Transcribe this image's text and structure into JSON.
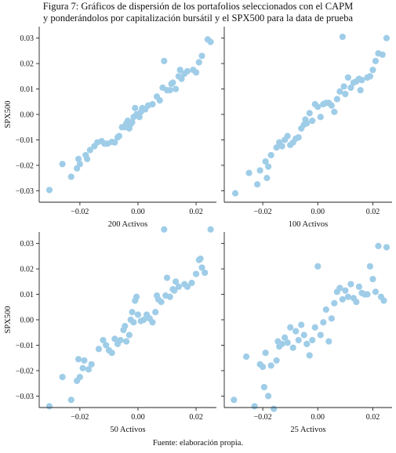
{
  "caption": {
    "line1_a": "Figura 7: Gráficos de dispersión de los portafolios seleccionados con el ",
    "line1_b": "CAPM",
    "line2_a": "y ponderándolos por capitalización bursátil y el ",
    "line2_b": "SPX500",
    "line2_c": " para la data de prueba"
  },
  "source": "Fuente: elaboración propia.",
  "colors": {
    "point": "#9fcde8",
    "axis": "#222222",
    "background": "#ffffff"
  },
  "chart_data": [
    {
      "type": "scatter",
      "xlabel": "200 Activos",
      "ylabel": "SPX500",
      "xticks": [
        -0.02,
        0.0,
        0.02
      ],
      "yticks": [
        -0.03,
        -0.02,
        -0.01,
        0.0,
        0.01,
        0.02,
        0.03
      ],
      "tick_labels_x": [
        "−0.02",
        "0.00",
        "0.02"
      ],
      "tick_labels_y": [
        "−0.03",
        "−0.02",
        "−0.01",
        "0.00",
        "0.01",
        "0.02",
        "0.03"
      ],
      "xlim": [
        -0.034,
        0.027
      ],
      "ylim": [
        -0.0345,
        0.0345
      ],
      "points": [
        [
          -0.0305,
          -0.0297
        ],
        [
          -0.026,
          -0.0195
        ],
        [
          -0.023,
          -0.0245
        ],
        [
          -0.021,
          -0.0212
        ],
        [
          -0.0205,
          -0.0175
        ],
        [
          -0.02,
          -0.0195
        ],
        [
          -0.018,
          -0.016
        ],
        [
          -0.0175,
          -0.0175
        ],
        [
          -0.0165,
          -0.014
        ],
        [
          -0.015,
          -0.0125
        ],
        [
          -0.014,
          -0.011
        ],
        [
          -0.0125,
          -0.0105
        ],
        [
          -0.0115,
          -0.0115
        ],
        [
          -0.0105,
          -0.0115
        ],
        [
          -0.009,
          -0.0108
        ],
        [
          -0.008,
          -0.011
        ],
        [
          -0.007,
          -0.009
        ],
        [
          -0.0065,
          -0.0085
        ],
        [
          -0.0055,
          -0.005
        ],
        [
          -0.0045,
          -0.005
        ],
        [
          -0.004,
          -0.0035
        ],
        [
          -0.0035,
          -0.0025
        ],
        [
          -0.003,
          -0.0055
        ],
        [
          -0.0025,
          -0.0038
        ],
        [
          -0.002,
          -0.003
        ],
        [
          -0.0015,
          -0.001
        ],
        [
          -0.001,
          0.0025
        ],
        [
          -0.0005,
          0.0
        ],
        [
          0.0005,
          -0.001
        ],
        [
          0.001,
          0.001
        ],
        [
          0.0015,
          0.0025
        ],
        [
          0.0025,
          0.002
        ],
        [
          0.0035,
          0.0035
        ],
        [
          0.005,
          0.004
        ],
        [
          0.0065,
          0.007
        ],
        [
          0.0075,
          0.0055
        ],
        [
          0.0085,
          0.0105
        ],
        [
          0.009,
          0.021
        ],
        [
          0.01,
          0.0095
        ],
        [
          0.011,
          0.0095
        ],
        [
          0.0115,
          0.012
        ],
        [
          0.012,
          0.0125
        ],
        [
          0.013,
          0.01
        ],
        [
          0.014,
          0.015
        ],
        [
          0.0145,
          0.0175
        ],
        [
          0.015,
          0.014
        ],
        [
          0.016,
          0.016
        ],
        [
          0.017,
          0.017
        ],
        [
          0.019,
          0.0175
        ],
        [
          0.02,
          0.0165
        ],
        [
          0.021,
          0.0205
        ],
        [
          0.022,
          0.023
        ],
        [
          0.024,
          0.0295
        ],
        [
          0.025,
          0.0285
        ]
      ]
    },
    {
      "type": "scatter",
      "xlabel": "100 Activos",
      "ylabel": "",
      "xticks": [
        -0.02,
        0.0,
        0.02
      ],
      "yticks": [
        -0.03,
        -0.02,
        -0.01,
        0.0,
        0.01,
        0.02,
        0.03
      ],
      "tick_labels_x": [
        "−0.02",
        "0.00",
        "0.02"
      ],
      "tick_labels_y": [],
      "xlim": [
        -0.034,
        0.027
      ],
      "ylim": [
        -0.0345,
        0.0345
      ],
      "points": [
        [
          -0.03,
          -0.031
        ],
        [
          -0.025,
          -0.023
        ],
        [
          -0.022,
          -0.0275
        ],
        [
          -0.021,
          -0.022
        ],
        [
          -0.019,
          -0.0185
        ],
        [
          -0.0185,
          -0.025
        ],
        [
          -0.018,
          -0.0205
        ],
        [
          -0.017,
          -0.016
        ],
        [
          -0.015,
          -0.013
        ],
        [
          -0.014,
          -0.011
        ],
        [
          -0.013,
          -0.0125
        ],
        [
          -0.012,
          -0.01
        ],
        [
          -0.011,
          -0.0085
        ],
        [
          -0.01,
          -0.012
        ],
        [
          -0.009,
          -0.011
        ],
        [
          -0.008,
          -0.0095
        ],
        [
          -0.007,
          -0.009
        ],
        [
          -0.006,
          -0.0055
        ],
        [
          -0.005,
          -0.004
        ],
        [
          -0.0045,
          -0.002
        ],
        [
          -0.004,
          -0.0035
        ],
        [
          -0.003,
          0.0005
        ],
        [
          -0.002,
          -0.0025
        ],
        [
          -0.001,
          0.004
        ],
        [
          0.0,
          0.003
        ],
        [
          0.001,
          -0.001
        ],
        [
          0.002,
          0.004
        ],
        [
          0.003,
          0.0045
        ],
        [
          0.004,
          0.0045
        ],
        [
          0.005,
          0.0035
        ],
        [
          0.006,
          0.001
        ],
        [
          0.007,
          0.006
        ],
        [
          0.008,
          0.009
        ],
        [
          0.009,
          0.0305
        ],
        [
          0.0095,
          0.011
        ],
        [
          0.01,
          0.008
        ],
        [
          0.011,
          0.0145
        ],
        [
          0.012,
          0.0105
        ],
        [
          0.013,
          0.0125
        ],
        [
          0.014,
          0.013
        ],
        [
          0.015,
          0.014
        ],
        [
          0.0155,
          0.0095
        ],
        [
          0.016,
          0.0135
        ],
        [
          0.018,
          0.0145
        ],
        [
          0.019,
          0.015
        ],
        [
          0.02,
          0.0175
        ],
        [
          0.021,
          0.021
        ],
        [
          0.022,
          0.024
        ],
        [
          0.0235,
          0.0235
        ],
        [
          0.025,
          0.03
        ]
      ]
    },
    {
      "type": "scatter",
      "xlabel": "50 Activos",
      "ylabel": "SPX500",
      "xticks": [
        -0.02,
        0.0,
        0.02
      ],
      "yticks": [
        -0.03,
        -0.02,
        -0.01,
        0.0,
        0.01,
        0.02,
        0.03
      ],
      "tick_labels_x": [
        "−0.02",
        "0.00",
        "0.02"
      ],
      "tick_labels_y": [
        "−0.03",
        "−0.02",
        "−0.01",
        "0.00",
        "0.01",
        "0.02",
        "0.03"
      ],
      "xlim": [
        -0.034,
        0.027
      ],
      "ylim": [
        -0.0345,
        0.0345
      ],
      "points": [
        [
          -0.0305,
          -0.034
        ],
        [
          -0.026,
          -0.0225
        ],
        [
          -0.023,
          -0.0315
        ],
        [
          -0.021,
          -0.024
        ],
        [
          -0.0205,
          -0.0155
        ],
        [
          -0.02,
          -0.0225
        ],
        [
          -0.019,
          -0.019
        ],
        [
          -0.0185,
          -0.016
        ],
        [
          -0.017,
          -0.0195
        ],
        [
          -0.016,
          -0.0175
        ],
        [
          -0.0135,
          -0.0115
        ],
        [
          -0.012,
          -0.008
        ],
        [
          -0.011,
          -0.01
        ],
        [
          -0.01,
          -0.012
        ],
        [
          -0.009,
          -0.013
        ],
        [
          -0.008,
          -0.0075
        ],
        [
          -0.007,
          -0.0095
        ],
        [
          -0.006,
          -0.008
        ],
        [
          -0.005,
          -0.004
        ],
        [
          -0.0045,
          -0.0025
        ],
        [
          -0.004,
          -0.0085
        ],
        [
          -0.003,
          -0.006
        ],
        [
          -0.0025,
          0.0
        ],
        [
          -0.002,
          0.003
        ],
        [
          -0.0015,
          -0.001
        ],
        [
          -0.001,
          0.0075
        ],
        [
          -0.0005,
          0.009
        ],
        [
          0.0,
          0.002
        ],
        [
          0.001,
          -0.0005
        ],
        [
          0.002,
          0.0
        ],
        [
          0.003,
          0.002
        ],
        [
          0.004,
          0.0005
        ],
        [
          0.005,
          -0.001
        ],
        [
          0.006,
          0.003
        ],
        [
          0.0065,
          0.0095
        ],
        [
          0.007,
          0.008
        ],
        [
          0.008,
          0.007
        ],
        [
          0.009,
          0.0355
        ],
        [
          0.0095,
          0.0095
        ],
        [
          0.01,
          0.0165
        ],
        [
          0.011,
          0.009
        ],
        [
          0.012,
          0.012
        ],
        [
          0.0125,
          0.0115
        ],
        [
          0.013,
          0.015
        ],
        [
          0.014,
          0.013
        ],
        [
          0.016,
          0.014
        ],
        [
          0.017,
          0.013
        ],
        [
          0.0185,
          0.0145
        ],
        [
          0.02,
          0.018
        ],
        [
          0.021,
          0.0235
        ],
        [
          0.0215,
          0.024
        ],
        [
          0.022,
          0.0205
        ],
        [
          0.023,
          0.0185
        ],
        [
          0.025,
          0.0355
        ]
      ]
    },
    {
      "type": "scatter",
      "xlabel": "25 Activos",
      "ylabel": "",
      "xticks": [
        -0.02,
        0.0,
        0.02
      ],
      "yticks": [
        -0.03,
        -0.02,
        -0.01,
        0.0,
        0.01,
        0.02,
        0.03
      ],
      "tick_labels_x": [
        "−0.02",
        "0.00",
        "0.02"
      ],
      "tick_labels_y": [],
      "xlim": [
        -0.034,
        0.027
      ],
      "ylim": [
        -0.0345,
        0.0345
      ],
      "points": [
        [
          -0.0305,
          -0.0315
        ],
        [
          -0.026,
          -0.0145
        ],
        [
          -0.023,
          -0.034
        ],
        [
          -0.021,
          -0.0175
        ],
        [
          -0.02,
          -0.0185
        ],
        [
          -0.0195,
          -0.0265
        ],
        [
          -0.019,
          -0.013
        ],
        [
          -0.018,
          -0.03
        ],
        [
          -0.017,
          -0.018
        ],
        [
          -0.016,
          -0.035
        ],
        [
          -0.015,
          -0.016
        ],
        [
          -0.0145,
          -0.0085
        ],
        [
          -0.014,
          -0.0105
        ],
        [
          -0.013,
          -0.0095
        ],
        [
          -0.012,
          -0.007
        ],
        [
          -0.011,
          -0.009
        ],
        [
          -0.01,
          -0.003
        ],
        [
          -0.009,
          -0.011
        ],
        [
          -0.008,
          -0.0045
        ],
        [
          -0.007,
          -0.008
        ],
        [
          -0.006,
          -0.002
        ],
        [
          -0.005,
          -0.006
        ],
        [
          -0.004,
          -0.0095
        ],
        [
          -0.003,
          -0.014
        ],
        [
          -0.002,
          -0.008
        ],
        [
          -0.001,
          -0.003
        ],
        [
          0.0,
          0.021
        ],
        [
          0.001,
          -0.006
        ],
        [
          0.002,
          -0.001
        ],
        [
          0.003,
          0.004
        ],
        [
          0.004,
          -0.0085
        ],
        [
          0.005,
          0.0005
        ],
        [
          0.006,
          0.0065
        ],
        [
          0.007,
          0.011
        ],
        [
          0.008,
          0.0125
        ],
        [
          0.009,
          0.008
        ],
        [
          0.01,
          0.0115
        ],
        [
          0.011,
          0.009
        ],
        [
          0.012,
          0.014
        ],
        [
          0.013,
          0.0085
        ],
        [
          0.014,
          0.007
        ],
        [
          0.015,
          0.013
        ],
        [
          0.016,
          0.0105
        ],
        [
          0.017,
          0.01
        ],
        [
          0.018,
          0.01
        ],
        [
          0.019,
          0.021
        ],
        [
          0.02,
          0.016
        ],
        [
          0.021,
          0.011
        ],
        [
          0.022,
          0.029
        ],
        [
          0.023,
          0.009
        ],
        [
          0.024,
          0.0075
        ],
        [
          0.025,
          0.0285
        ]
      ]
    }
  ]
}
